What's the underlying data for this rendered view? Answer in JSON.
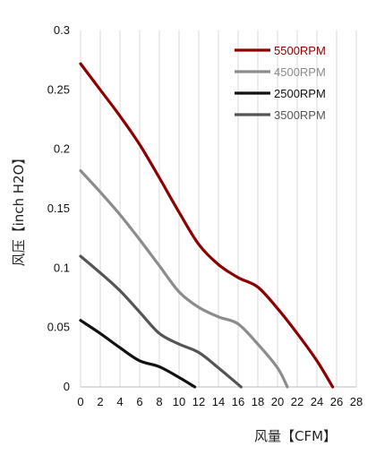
{
  "chart_data": {
    "type": "line",
    "title": "",
    "xlabel": "风量【CFM】",
    "ylabel": "风压【inch H2O】",
    "xlim": [
      0,
      28
    ],
    "ylim": [
      0,
      0.3
    ],
    "xticks": [
      0,
      2,
      4,
      6,
      8,
      10,
      12,
      14,
      16,
      18,
      20,
      22,
      24,
      26,
      28
    ],
    "yticks": [
      0,
      0.05,
      0.1,
      0.15,
      0.2,
      0.25,
      0.3
    ],
    "xtick_labels": [
      "0",
      "2",
      "4",
      "6",
      "8",
      "10",
      "12",
      "14",
      "16",
      "18",
      "20",
      "22",
      "24",
      "26",
      "28"
    ],
    "ytick_labels": [
      "0",
      "0.05",
      "0.1",
      "0.15",
      "0.2",
      "0.25",
      "0.3"
    ],
    "grid": "vertical",
    "legend_position": "top-right",
    "series": [
      {
        "name": "5500RPM",
        "color": "#8b0000",
        "x": [
          0,
          2,
          4,
          6,
          8,
          10,
          12,
          14,
          16,
          18,
          20,
          22,
          24,
          25.6
        ],
        "y": [
          0.272,
          0.25,
          0.228,
          0.204,
          0.176,
          0.147,
          0.12,
          0.103,
          0.092,
          0.084,
          0.066,
          0.045,
          0.022,
          0.0
        ]
      },
      {
        "name": "4500RPM",
        "color": "#8c8c8c",
        "x": [
          0,
          2,
          4,
          6,
          8,
          10,
          12,
          14,
          16,
          18,
          20,
          21
        ],
        "y": [
          0.182,
          0.164,
          0.145,
          0.124,
          0.102,
          0.08,
          0.067,
          0.059,
          0.053,
          0.036,
          0.016,
          0.0
        ]
      },
      {
        "name": "2500RPM",
        "color": "#111111",
        "x": [
          0,
          2,
          4,
          6,
          8,
          10,
          11.6
        ],
        "y": [
          0.056,
          0.045,
          0.033,
          0.022,
          0.017,
          0.008,
          0.0
        ]
      },
      {
        "name": "3500RPM",
        "color": "#555555",
        "x": [
          0,
          2,
          4,
          6,
          8,
          10,
          12,
          14,
          16.3
        ],
        "y": [
          0.11,
          0.096,
          0.081,
          0.063,
          0.045,
          0.036,
          0.029,
          0.016,
          0.0
        ]
      }
    ]
  }
}
